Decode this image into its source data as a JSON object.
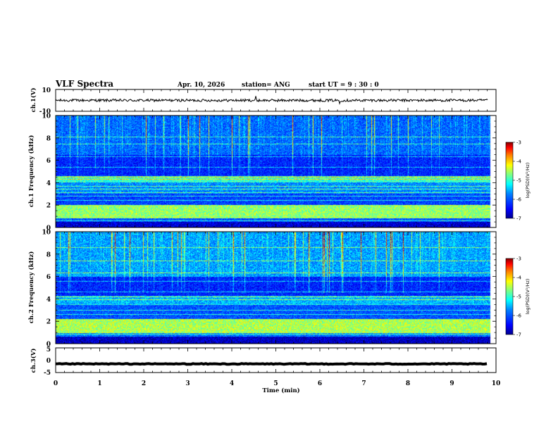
{
  "header": {
    "title": "VLF Spectra",
    "date": "Apr. 10, 2026",
    "station": "station= ANG",
    "start_ut": "start  UT =   9 : 30 : 0"
  },
  "chart_data": [
    {
      "type": "line",
      "name": "ch1-waveform",
      "ylabel": "ch.1(V)",
      "ylim": [
        -10,
        10
      ],
      "yticks": [
        "10",
        "-10"
      ],
      "baseline": 0,
      "noise_amplitude": 1.2,
      "spikes": [
        {
          "t": 4.55,
          "v": 4
        },
        {
          "t": 6.45,
          "v": -3
        }
      ]
    },
    {
      "type": "heatmap",
      "name": "ch1-spectrogram",
      "xlabel": "Time (min)",
      "ylabel": "ch.1  Frequency (kHz)",
      "xlim": [
        0,
        10
      ],
      "ylim": [
        0,
        10
      ],
      "yticks": [
        "0",
        "2",
        "4",
        "6",
        "8",
        "10"
      ],
      "data_end_time": 9.85,
      "colorbar": {
        "label": "log(PSD)(V²/Hz)",
        "range": [
          -7,
          -3
        ],
        "ticks": [
          "-3",
          "-4",
          "-5",
          "-6",
          "-7"
        ]
      },
      "bands_khz": [
        {
          "f0": 0.0,
          "f1": 0.45,
          "level": -6.7
        },
        {
          "f0": 0.45,
          "f1": 0.8,
          "level": -6.0
        },
        {
          "f0": 0.8,
          "f1": 2.0,
          "level": -4.6
        },
        {
          "f0": 2.0,
          "f1": 3.0,
          "level": -6.1
        },
        {
          "f0": 3.0,
          "f1": 4.0,
          "level": -5.7
        },
        {
          "f0": 4.0,
          "f1": 4.6,
          "level": -5.0
        },
        {
          "f0": 4.6,
          "f1": 6.5,
          "level": -6.3
        },
        {
          "f0": 6.5,
          "f1": 10.0,
          "level": -5.9
        }
      ],
      "lines_khz": [
        0.6,
        2.4,
        2.8,
        3.1,
        3.4,
        3.7,
        4.3,
        4.5,
        5.4,
        6.3,
        7.5,
        8.1
      ]
    },
    {
      "type": "heatmap",
      "name": "ch2-spectrogram",
      "xlabel": "Time (min)",
      "ylabel": "ch.2  Frequency (kHz)",
      "xlim": [
        0,
        10
      ],
      "ylim": [
        0,
        10
      ],
      "yticks": [
        "0",
        "2",
        "4",
        "6",
        "8",
        "10"
      ],
      "data_end_time": 9.85,
      "colorbar": {
        "label": "log(PSD)(V²/Hz)",
        "range": [
          -7,
          -3
        ],
        "ticks": [
          "-3",
          "-4",
          "-5",
          "-6",
          "-7"
        ]
      },
      "bands_khz": [
        {
          "f0": 0.0,
          "f1": 0.6,
          "level": -6.8
        },
        {
          "f0": 0.6,
          "f1": 0.9,
          "level": -5.8
        },
        {
          "f0": 0.9,
          "f1": 2.2,
          "level": -4.5
        },
        {
          "f0": 2.2,
          "f1": 3.5,
          "level": -6.0
        },
        {
          "f0": 3.5,
          "f1": 4.3,
          "level": -5.5
        },
        {
          "f0": 4.3,
          "f1": 6.0,
          "level": -6.3
        },
        {
          "f0": 6.0,
          "f1": 10.0,
          "level": -5.6
        }
      ],
      "lines_khz": [
        0.8,
        2.6,
        3.0,
        3.5,
        3.9,
        4.2,
        4.6,
        5.6,
        6.3,
        7.4,
        8.6
      ]
    },
    {
      "type": "line",
      "name": "ch3-waveform",
      "ylabel": "ch.3(V)",
      "xlabel": "Time (min)",
      "ylim": [
        -5,
        5
      ],
      "yticks": [
        "5",
        "0",
        "-5"
      ],
      "xticks": [
        "0",
        "1",
        "2",
        "3",
        "4",
        "5",
        "6",
        "7",
        "8",
        "9",
        "10"
      ],
      "baseline": -1.5,
      "noise_amplitude": 0.15
    }
  ],
  "colors": {
    "jet": [
      "#00008f",
      "#0000ff",
      "#0080ff",
      "#00ffff",
      "#80ff80",
      "#ffff00",
      "#ff8000",
      "#ff0000",
      "#800000"
    ],
    "axis": "#000000",
    "trace": "#000000"
  }
}
